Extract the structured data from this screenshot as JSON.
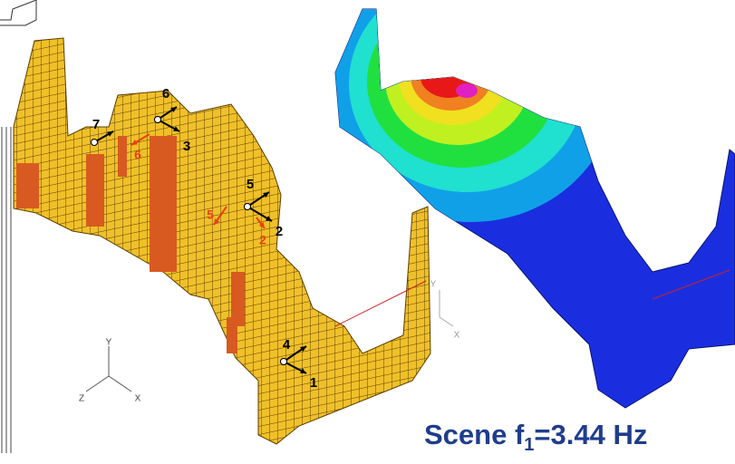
{
  "left_model": {
    "node_labels": [
      "7",
      "6",
      "3",
      "5",
      "2",
      "4",
      "1"
    ],
    "red_labels": [
      "6",
      "5",
      "2"
    ],
    "axes": [
      "Y",
      "Z",
      "X"
    ]
  },
  "right_model": {
    "axes": [
      "Y",
      "X"
    ]
  },
  "caption": {
    "prefix": "Scene f",
    "subscript": "1",
    "suffix": "=3.44 Hz"
  }
}
